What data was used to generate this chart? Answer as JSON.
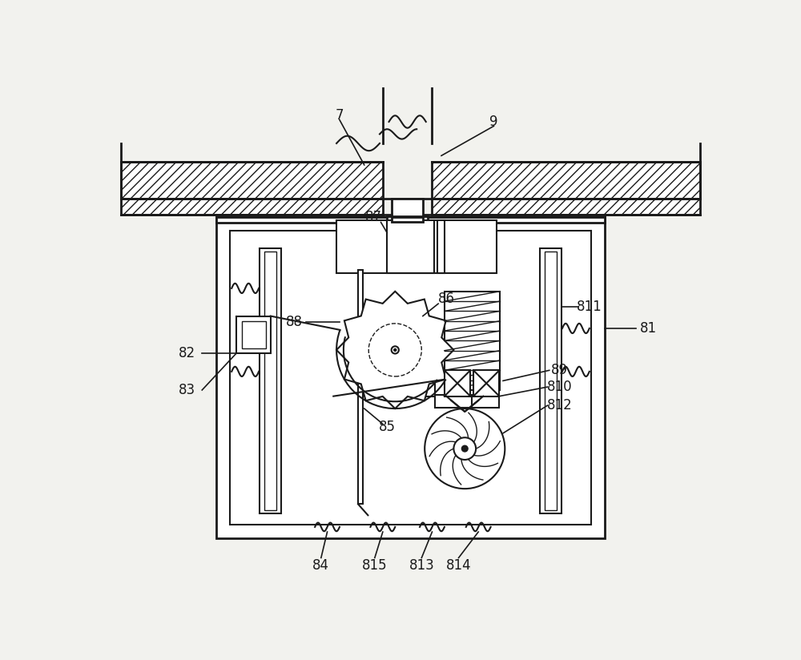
{
  "bg_color": "#f2f2ee",
  "line_color": "#1a1a1a",
  "lw_main": 2.0,
  "lw_med": 1.5,
  "lw_thin": 1.0,
  "label_fs": 12,
  "fig_w": 10.0,
  "fig_h": 8.24,
  "dpi": 100
}
